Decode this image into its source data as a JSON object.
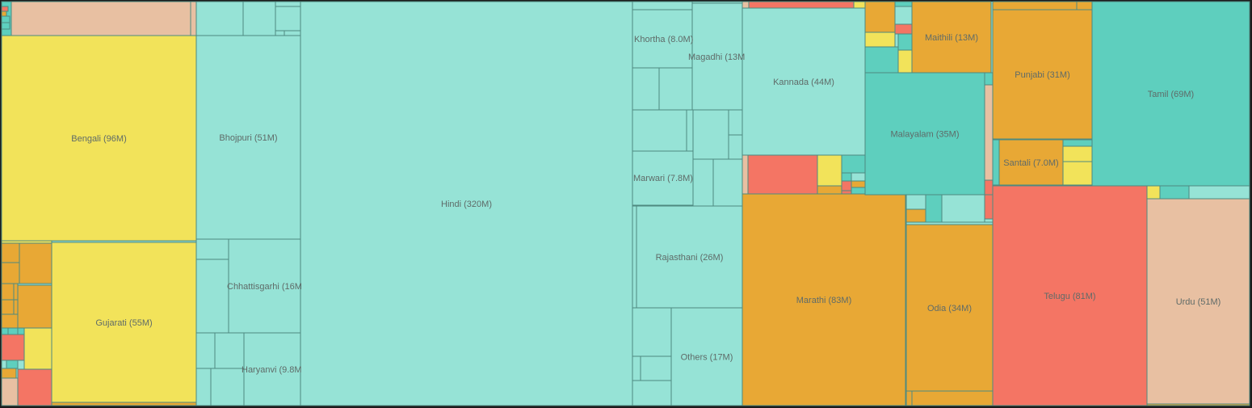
{
  "chart_data": {
    "type": "treemap",
    "unit": "M",
    "colors": {
      "teal_light": "#96e3d6",
      "teal": "#5ecfbe",
      "yellow": "#f2e35a",
      "orange": "#e8a835",
      "salmon": "#f47564",
      "peach": "#e8c0a2",
      "border": "#4e8a80"
    },
    "tiles": [
      {
        "name": "Hindi",
        "value": 320,
        "label": "Hindi (320M)",
        "color": "#96e3d6"
      },
      {
        "name": "Bengali",
        "value": 96,
        "label": "Bengali (96M)",
        "color": "#f2e35a"
      },
      {
        "name": "Marathi",
        "value": 83,
        "label": "Marathi (83M)",
        "color": "#e8a835"
      },
      {
        "name": "Telugu",
        "value": 81,
        "label": "Telugu (81M)",
        "color": "#f47564"
      },
      {
        "name": "Tamil",
        "value": 69,
        "label": "Tamil (69M)",
        "color": "#5ecfbe"
      },
      {
        "name": "Gujarati",
        "value": 55,
        "label": "Gujarati (55M)",
        "color": "#f2e35a"
      },
      {
        "name": "Urdu",
        "value": 51,
        "label": "Urdu (51M)",
        "color": "#e8c0a2"
      },
      {
        "name": "Bhojpuri",
        "value": 51,
        "label": "Bhojpuri (51M)",
        "color": "#96e3d6"
      },
      {
        "name": "Kannada",
        "value": 44,
        "label": "Kannada (44M)",
        "color": "#96e3d6"
      },
      {
        "name": "Malayalam",
        "value": 35,
        "label": "Malayalam (35M)",
        "color": "#5ecfbe"
      },
      {
        "name": "Odia",
        "value": 34,
        "label": "Odia (34M)",
        "color": "#e8a835"
      },
      {
        "name": "Punjabi",
        "value": 31,
        "label": "Punjabi (31M)",
        "color": "#e8a835"
      },
      {
        "name": "Rajasthani",
        "value": 26,
        "label": "Rajasthani (26M)",
        "color": "#96e3d6"
      },
      {
        "name": "Others",
        "value": 17,
        "label": "Others (17M)",
        "color": "#96e3d6"
      },
      {
        "name": "Chhattisgarhi",
        "value": 16,
        "label": "Chhattisgarhi (16M",
        "color": "#96e3d6"
      },
      {
        "name": "Magadhi",
        "value": 13,
        "label": "Magadhi (13M",
        "color": "#96e3d6"
      },
      {
        "name": "Maithili",
        "value": 13,
        "label": "Maithili (13M)",
        "color": "#e8a835"
      },
      {
        "name": "Haryanvi",
        "value": 9.8,
        "label": "Haryanvi (9.8M",
        "color": "#96e3d6"
      },
      {
        "name": "Khortha",
        "value": 8.0,
        "label": "Khortha (8.0M)",
        "color": "#96e3d6"
      },
      {
        "name": "Marwari",
        "value": 7.8,
        "label": "Marwari (7.8M)",
        "color": "#96e3d6"
      },
      {
        "name": "Santali",
        "value": 7.0,
        "label": "Santali (7.0M)",
        "color": "#e8a835"
      }
    ]
  }
}
